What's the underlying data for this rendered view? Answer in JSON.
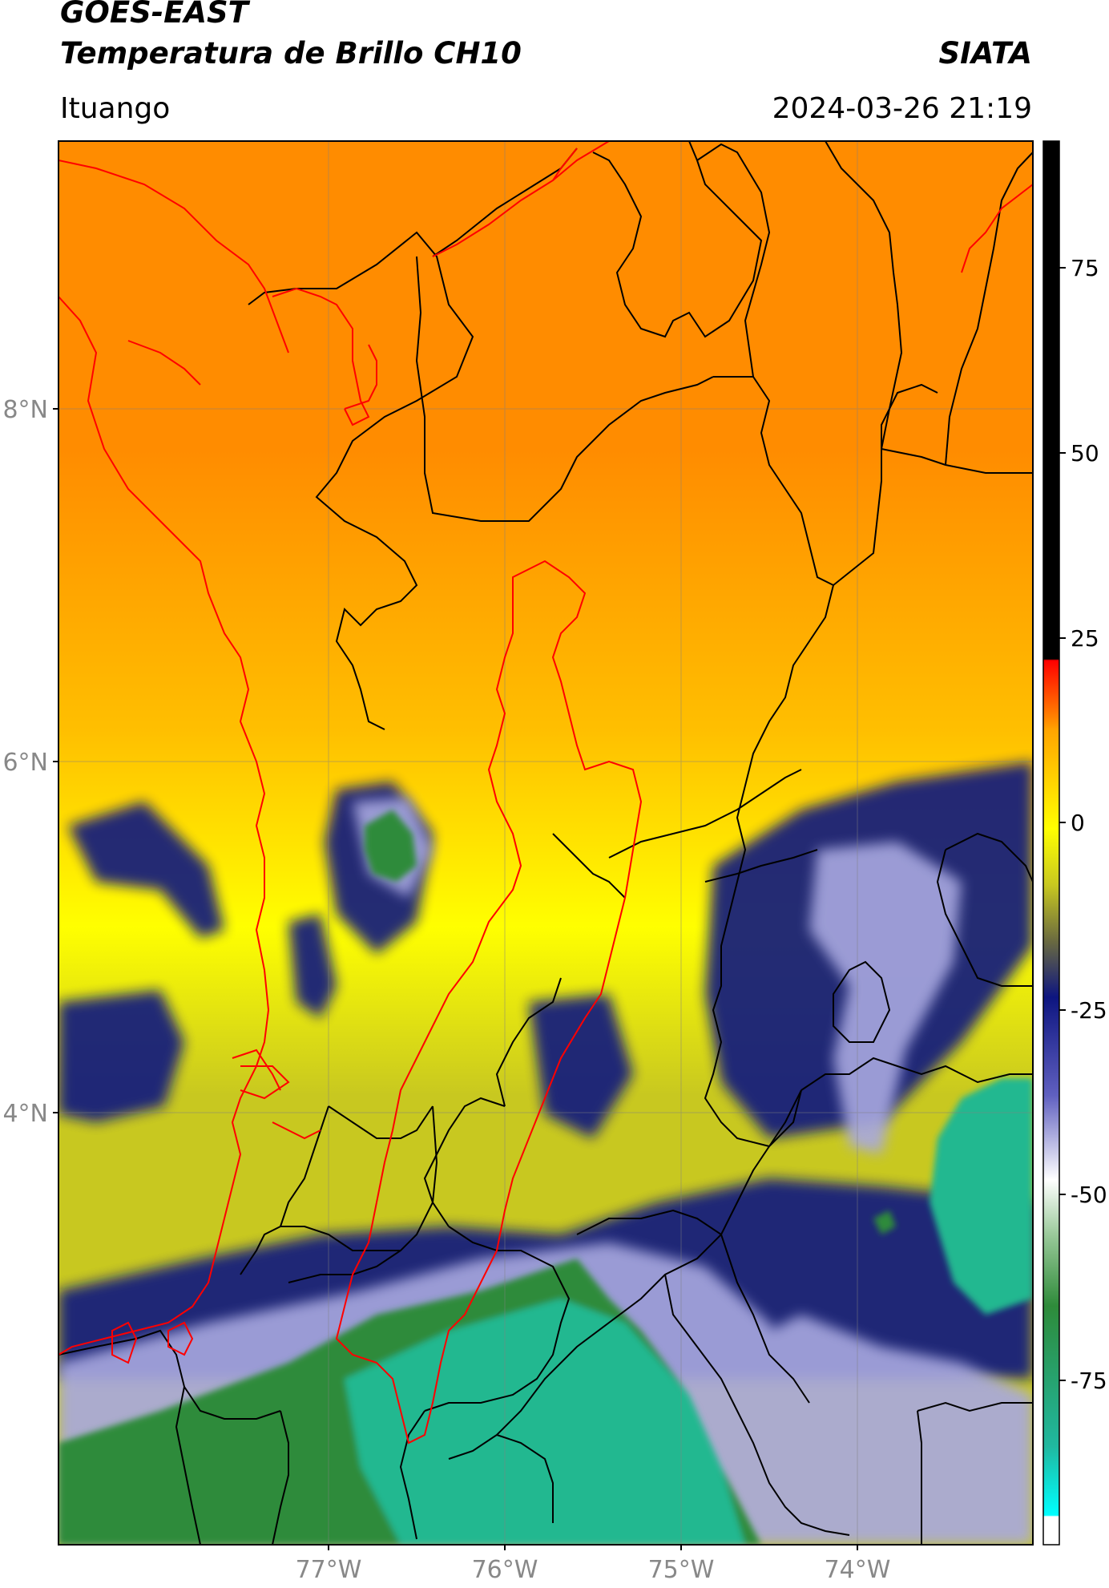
{
  "header": {
    "satellite": "GOES-EAST",
    "product": "Temperatura de Brillo CH10",
    "institution": "SIATA",
    "location": "Ituango",
    "datetime": "2024-03-26 21:19"
  },
  "map": {
    "lat_labels": [
      "8°N",
      "6°N",
      "4°N"
    ],
    "lon_labels": [
      "77°W",
      "76°W",
      "75°W",
      "74°W"
    ],
    "colors": {
      "hot": "#ff8c00",
      "warm": "#ffbf00",
      "yellow": "#ffff00",
      "olive": "#c8c820",
      "navy": "#0d1580",
      "lavender": "#a8a8e0",
      "green": "#2e8b3a",
      "teal": "#20b890",
      "border_black": "#000000",
      "border_red": "#ff0000"
    }
  },
  "colorbar": {
    "tick_labels": [
      "75",
      "50",
      "25",
      "0",
      "-25",
      "-50",
      "-75"
    ]
  }
}
